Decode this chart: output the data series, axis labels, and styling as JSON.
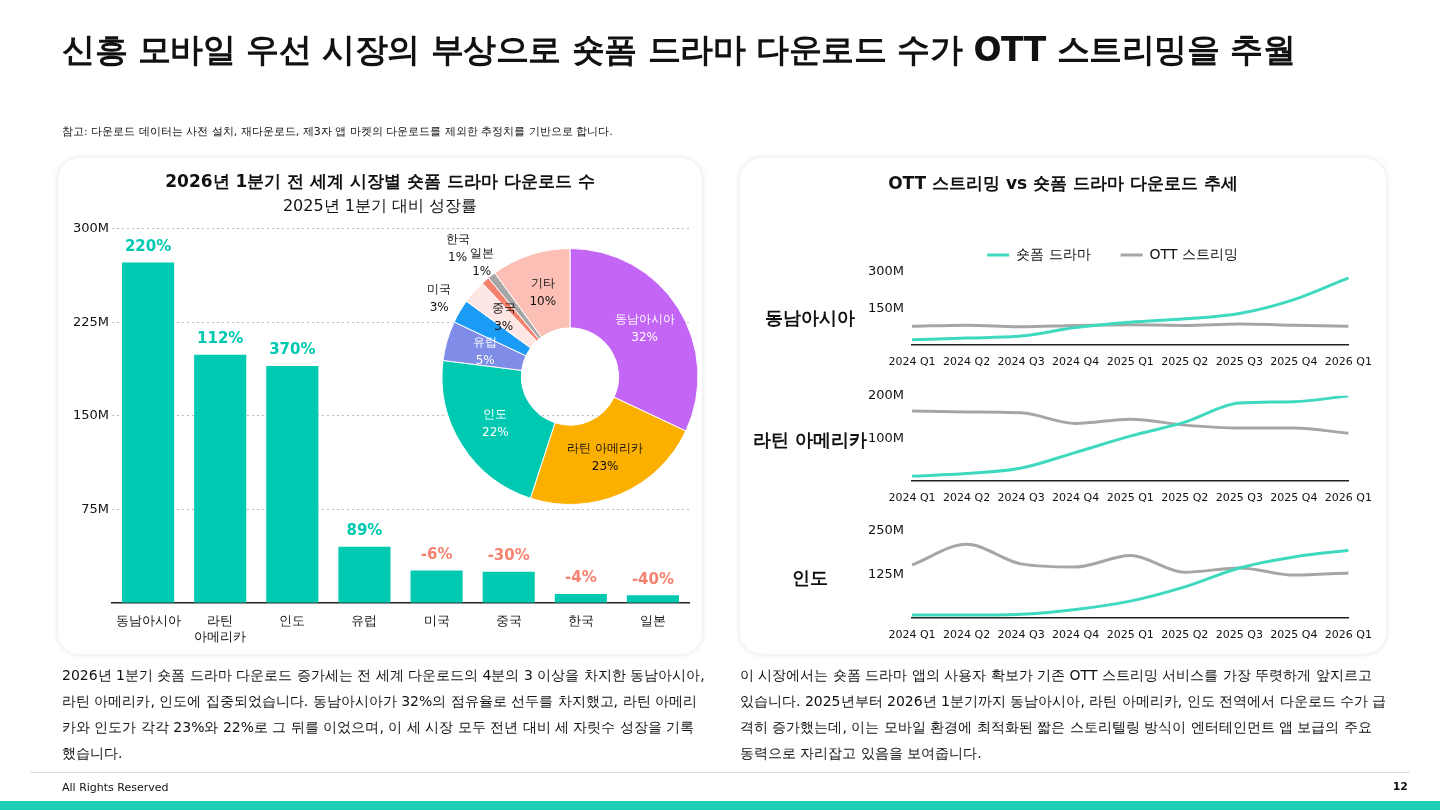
{
  "chart_data": [
    {
      "type": "other",
      "title": "신흥 모바일 우선 시장의 부상으로 숏폼 드라마 다운로드 수가 OTT 스트리밍을 추월",
      "annotations": [
        "참고: 다운로드 데이터는 사전 설치, 재다운로드, 제3자 앱 마켓의 다운로드를 제외한 추정치를 기반으로 합니다.",
        "All Rights Reserved",
        "12"
      ]
    },
    {
      "type": "bar",
      "title": "2026년 1분기 전 세계 시장별 숏폼 드라마 다운로드 수",
      "subtitle": "2025년 1분기 대비 성장률",
      "categories": [
        "동남아시아",
        "라틴 아메리카",
        "인도",
        "유럽",
        "미국",
        "중국",
        "한국",
        "일본"
      ],
      "values": [
        273,
        199,
        190,
        45,
        26,
        25,
        7,
        6
      ],
      "color": "#00c9b1",
      "ylim": [
        0,
        300
      ],
      "yticks": [
        {
          "value": 75,
          "label": "75M"
        },
        {
          "value": 150,
          "label": "150M"
        },
        {
          "value": 225,
          "label": "225M"
        },
        {
          "value": 300,
          "label": "300M"
        }
      ],
      "grid": "y",
      "legend": false,
      "annotations": [
        {
          "text": "220%",
          "x": "동남아시아",
          "y": 273
        },
        {
          "text": "112%",
          "x": "라틴 아메리카",
          "y": 199
        },
        {
          "text": "370%",
          "x": "인도",
          "y": 190
        },
        {
          "text": "89%",
          "x": "유럽",
          "y": 45
        },
        {
          "text": "-6%",
          "x": "미국",
          "y": 26
        },
        {
          "text": "-30%",
          "x": "중국",
          "y": 25
        },
        {
          "text": "-4%",
          "x": "한국",
          "y": 7
        },
        {
          "text": "-40%",
          "x": "일본",
          "y": 6
        },
        "2026년 1분기 숏폼 드라마 다운로드 증가세는 전 세계 다운로드의 4분의 3 이상을 차지한 동남아시아, 라틴 아메리카, 인도에 집중되었습니다. 동남아시아가 32%의 점유율로 선두를 차지했고, 라틴 아메리카와 인도가 각각 23%와 22%로 그 뒤를 이었으며, 이 세 시장 모두 전년 대비 세 자릿수 성장을 기록했습니다."
      ]
    },
    {
      "type": "donut",
      "categories": [
        "동남아시아",
        "라틴 아메리카",
        "인도",
        "유럽",
        "미국",
        "중국",
        "한국",
        "일본",
        "기타"
      ],
      "values": [
        32,
        23,
        22,
        5,
        3,
        3,
        1,
        1,
        10
      ],
      "value_labels": [
        "32%",
        "23%",
        "22%",
        "5%",
        "3%",
        "3%",
        "1%",
        "1%",
        "10%"
      ],
      "colors": [
        "#c466f5",
        "#fbb000",
        "#00c9b1",
        "#7f8ce8",
        "#1a9bf5",
        "#fde6e4",
        "#f4826f",
        "#a6a6a6",
        "#fbbfb5"
      ],
      "legend": false
    },
    {
      "type": "line",
      "title": "OTT 스트리밍 vs 숏폼 드라마 다운로드 추세",
      "ylabel": "동남아시아",
      "categories": [
        "2024 Q1",
        "2024 Q2",
        "2024 Q3",
        "2024 Q4",
        "2025 Q1",
        "2025 Q2",
        "2025 Q3",
        "2025 Q4",
        "2026 Q1"
      ],
      "ylim": [
        0,
        300
      ],
      "yticks": [
        {
          "value": 150,
          "label": "150M"
        },
        {
          "value": 300,
          "label": "300M"
        }
      ],
      "grid": false,
      "legend": "top",
      "marker": "none",
      "series": [
        {
          "name": "숏폼 드라마",
          "color": "#3fd9c0",
          "values": [
            21,
            28,
            36,
            71,
            93,
            107,
            129,
            186,
            276
          ]
        },
        {
          "name": "OTT 스트리밍",
          "color": "#a6a6a6",
          "values": [
            76,
            81,
            74,
            80,
            83,
            80,
            86,
            81,
            76
          ]
        }
      ],
      "annotations": [
        "이 시장에서는 숏폼 드라마 앱의 사용자 확보가 기존 OTT 스트리밍 서비스를 가장 뚜렷하게 앞지르고 있습니다. 2025년부터 2026년 1분기까지 동남아시아, 라틴 아메리카, 인도 전역에서 다운로드 수가 급격히 증가했는데, 이는 모바일 환경에 최적화된 짧은 스토리텔링 방식이 엔터테인먼트 앱 보급의 주요 동력으로 자리잡고 있음을 보여줍니다."
      ]
    },
    {
      "type": "line",
      "ylabel": "라틴 아메리카",
      "categories": [
        "2024 Q1",
        "2024 Q2",
        "2024 Q3",
        "2024 Q4",
        "2025 Q1",
        "2025 Q2",
        "2025 Q3",
        "2025 Q4",
        "2026 Q1"
      ],
      "ylim": [
        0,
        200
      ],
      "yticks": [
        {
          "value": 100,
          "label": "100M"
        },
        {
          "value": 200,
          "label": "200M"
        }
      ],
      "grid": false,
      "legend": false,
      "marker": "none",
      "series": [
        {
          "color": "#3fd9c0",
          "values": [
            11,
            17,
            30,
            67,
            105,
            138,
            183,
            186,
            200
          ]
        },
        {
          "color": "#a6a6a6",
          "values": [
            164,
            162,
            160,
            135,
            145,
            131,
            124,
            124,
            112
          ]
        }
      ]
    },
    {
      "type": "line",
      "ylabel": "인도",
      "categories": [
        "2024 Q1",
        "2024 Q2",
        "2024 Q3",
        "2024 Q4",
        "2025 Q1",
        "2025 Q2",
        "2025 Q3",
        "2025 Q4",
        "2026 Q1"
      ],
      "ylim": [
        0,
        250
      ],
      "yticks": [
        {
          "value": 125,
          "label": "125M"
        },
        {
          "value": 250,
          "label": "250M"
        }
      ],
      "grid": false,
      "legend": false,
      "marker": "none",
      "series": [
        {
          "color": "#3fd9c0",
          "values": [
            8,
            8,
            10,
            24,
            48,
            89,
            143,
            175,
            194
          ]
        },
        {
          "color": "#a6a6a6",
          "values": [
            152,
            211,
            155,
            146,
            179,
            131,
            143,
            123,
            129
          ]
        }
      ]
    }
  ]
}
